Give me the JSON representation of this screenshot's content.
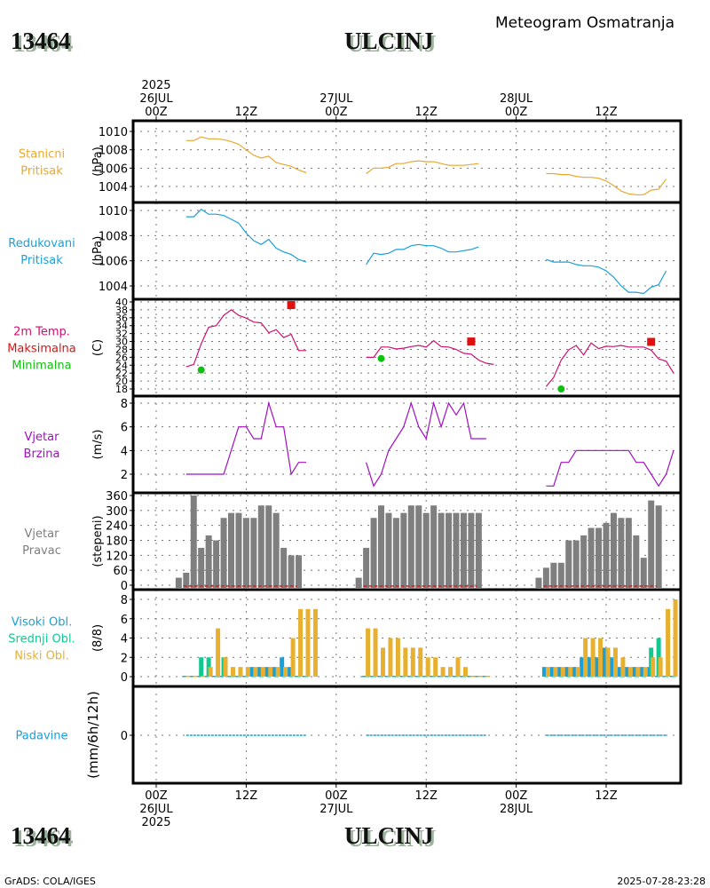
{
  "header": {
    "station_id": "13464",
    "station_name": "ULCINJ",
    "subtitle": "Meteogram Osmatranja"
  },
  "footer": {
    "station_id": "13464",
    "station_name": "ULCINJ",
    "credit": "GrADS: COLA/IGES",
    "timestamp": "2025-07-28-23:28"
  },
  "time_axis": {
    "top_labels": [
      {
        "hour": 0,
        "lines": [
          "2025",
          "26JUL",
          "00Z"
        ]
      },
      {
        "hour": 12,
        "lines": [
          "12Z"
        ]
      },
      {
        "hour": 24,
        "lines": [
          "27JUL",
          "00Z"
        ]
      },
      {
        "hour": 36,
        "lines": [
          "12Z"
        ]
      },
      {
        "hour": 48,
        "lines": [
          "28JUL",
          "00Z"
        ]
      },
      {
        "hour": 60,
        "lines": [
          "12Z"
        ]
      }
    ],
    "bottom_labels": [
      {
        "hour": 0,
        "lines": [
          "00Z",
          "26JUL",
          "2025"
        ]
      },
      {
        "hour": 12,
        "lines": [
          "12Z"
        ]
      },
      {
        "hour": 24,
        "lines": [
          "00Z",
          "27JUL"
        ]
      },
      {
        "hour": 36,
        "lines": [
          "12Z"
        ]
      },
      {
        "hour": 48,
        "lines": [
          "00Z",
          "28JUL"
        ]
      },
      {
        "hour": 60,
        "lines": [
          "12Z"
        ]
      }
    ],
    "range_hours": [
      -3,
      70
    ]
  },
  "chart_data": [
    {
      "type": "line",
      "id": "station-pressure",
      "title_lines": [
        "Stanicni",
        "Pritisak"
      ],
      "ylabel": "(hPa)",
      "color": "#e8a830",
      "ylim": [
        1003,
        1011
      ],
      "yticks": [
        1004,
        1006,
        1008,
        1010
      ],
      "x_hours_start": [
        4,
        28,
        52
      ],
      "segments": [
        [
          1009.0,
          1009.0,
          1009.4,
          1009.2,
          1009.2,
          1009.1,
          1008.9,
          1008.6,
          1008.0,
          1007.4,
          1007.1,
          1007.3,
          1006.6,
          1006.4,
          1006.2,
          1005.8,
          1005.5
        ],
        [
          1005.4,
          1006.0,
          1006.0,
          1006.1,
          1006.5,
          1006.5,
          1006.7,
          1006.8,
          1006.7,
          1006.7,
          1006.5,
          1006.3,
          1006.3,
          1006.3,
          1006.4,
          1006.5
        ],
        [
          1005.4,
          1005.4,
          1005.3,
          1005.3,
          1005.1,
          1005.0,
          1005.0,
          1004.9,
          1004.6,
          1004.1,
          1003.5,
          1003.2,
          1003.1,
          1003.1,
          1003.6,
          1003.7,
          1004.8
        ]
      ]
    },
    {
      "type": "line",
      "id": "reduced-pressure",
      "title_lines": [
        "Redukovani",
        "Pritisak"
      ],
      "ylabel": "(hPa)",
      "color": "#1aa0d8",
      "ylim": [
        1003.2,
        1010.9
      ],
      "yticks": [
        1004,
        1006,
        1008,
        1010
      ],
      "x_hours_start": [
        4,
        28,
        52
      ],
      "segments": [
        [
          1009.5,
          1009.5,
          1010.1,
          1009.7,
          1009.7,
          1009.6,
          1009.3,
          1009.0,
          1008.2,
          1007.6,
          1007.3,
          1007.7,
          1007.0,
          1006.7,
          1006.5,
          1006.1,
          1005.9
        ],
        [
          1005.7,
          1006.6,
          1006.5,
          1006.6,
          1006.9,
          1006.9,
          1007.2,
          1007.3,
          1007.2,
          1007.2,
          1007.0,
          1006.7,
          1006.7,
          1006.8,
          1006.9,
          1007.1
        ],
        [
          1006.1,
          1005.9,
          1005.9,
          1005.9,
          1005.7,
          1005.6,
          1005.6,
          1005.5,
          1005.2,
          1004.7,
          1004.0,
          1003.5,
          1003.5,
          1003.4,
          1003.9,
          1004.1,
          1005.2
        ]
      ]
    },
    {
      "type": "line",
      "id": "temperature",
      "title_lines": [
        "2m Temp.",
        "Maksimalna",
        "Minimalna"
      ],
      "title_colors": [
        "#cc1070",
        "#e01010",
        "#10c010"
      ],
      "ylabel": "(C)",
      "color": "#cc1070",
      "ylim": [
        16.5,
        40.7
      ],
      "yticks": [
        18,
        20,
        22,
        24,
        26,
        28,
        30,
        32,
        34,
        36,
        38,
        40
      ],
      "x_hours_start": [
        4,
        28,
        52
      ],
      "segments": [
        [
          23.6,
          24.2,
          29.4,
          33.6,
          34.0,
          36.6,
          38.0,
          36.6,
          35.9,
          34.9,
          34.7,
          32.2,
          33.0,
          31.0,
          31.8,
          27.7,
          27.7
        ],
        [
          26.0,
          26.0,
          28.6,
          28.6,
          28.1,
          28.3,
          28.7,
          29.0,
          28.6,
          30.2,
          28.7,
          28.6,
          28.0,
          27.0,
          26.8,
          25.3,
          24.5,
          24.2
        ],
        [
          18.6,
          20.9,
          25.3,
          27.9,
          29.0,
          26.6,
          29.6,
          28.2,
          28.8,
          28.7,
          29.0,
          28.6,
          28.6,
          28.6,
          27.8,
          25.6,
          25.0,
          22.0
        ]
      ],
      "max_points": [
        {
          "hour": 18,
          "value": 39.2
        },
        {
          "hour": 42,
          "value": 30.0
        },
        {
          "hour": 66,
          "value": 29.9
        }
      ],
      "min_points": [
        {
          "hour": 6,
          "value": 22.8
        },
        {
          "hour": 30,
          "value": 25.7
        },
        {
          "hour": 54,
          "value": 18.0
        }
      ]
    },
    {
      "type": "line",
      "id": "wind-speed",
      "title_lines": [
        "Vjetar",
        "Brzina"
      ],
      "ylabel": "(m/s)",
      "color": "#a010c0",
      "ylim": [
        0.2,
        8.4
      ],
      "yticks": [
        2,
        4,
        6,
        8
      ],
      "x_hours_start": [
        4,
        28,
        52
      ],
      "segments": [
        [
          2,
          2,
          2,
          2,
          2,
          2,
          4,
          6,
          6,
          5,
          5,
          8,
          6,
          6,
          2,
          3,
          3
        ],
        [
          3,
          1,
          2,
          4,
          5,
          6,
          8,
          6,
          5,
          8,
          6,
          8,
          7,
          8,
          5,
          5,
          5
        ],
        [
          1,
          1,
          3,
          3,
          4,
          4,
          4,
          4,
          4,
          4,
          4,
          4,
          3,
          3,
          2,
          1,
          2,
          4
        ]
      ]
    },
    {
      "type": "bar",
      "id": "wind-direction",
      "title_lines": [
        "Vjetar",
        "Pravac"
      ],
      "ylabel": "(stepeni)",
      "color": "#7f7f7f",
      "ylim": [
        -5,
        365
      ],
      "yticks": [
        0,
        60,
        120,
        180,
        240,
        300,
        360
      ],
      "x_hours_start": [
        3,
        27,
        51
      ],
      "segments": [
        [
          30,
          50,
          360,
          150,
          200,
          180,
          270,
          290,
          290,
          270,
          270,
          320,
          320,
          290,
          150,
          120,
          120
        ],
        [
          30,
          150,
          270,
          320,
          290,
          270,
          290,
          320,
          320,
          290,
          320,
          290,
          290,
          290,
          290,
          290,
          290
        ],
        [
          30,
          70,
          90,
          90,
          180,
          180,
          200,
          230,
          230,
          250,
          290,
          270,
          270,
          200,
          110,
          340,
          320
        ]
      ],
      "calm_line_color": "#d02020"
    },
    {
      "type": "bar",
      "id": "cloud-cover",
      "title_lines": [
        "Visoki Obl.",
        "Srednji Obl.",
        "Niski Obl."
      ],
      "title_colors": [
        "#1aa0d8",
        "#10c890",
        "#e8b030"
      ],
      "ylabel": "(8/8)",
      "ylim": [
        -0.6,
        8.5
      ],
      "yticks": [
        0,
        2,
        4,
        6,
        8
      ],
      "x_hours_start": [
        4,
        28,
        52
      ],
      "series": [
        {
          "name": "Visoki Obl.",
          "color": "#1aa0d8",
          "segments": [
            [
              0,
              0,
              0,
              0,
              0,
              0,
              0,
              0,
              0,
              1,
              1,
              1,
              1,
              2,
              1,
              0,
              0
            ],
            [
              0,
              0,
              0,
              0,
              0,
              0,
              0,
              0,
              0,
              0,
              0,
              0,
              0,
              0,
              0,
              0,
              0
            ],
            [
              1,
              1,
              1,
              1,
              1,
              2,
              2,
              2,
              3,
              2,
              1,
              1,
              1,
              1,
              1,
              0,
              0,
              0
            ]
          ]
        },
        {
          "name": "Srednji Obl.",
          "color": "#10c890",
          "segments": [
            [
              0,
              0,
              2,
              2,
              0,
              2,
              0,
              0,
              0,
              0,
              0,
              0,
              0,
              0,
              0,
              0,
              0
            ],
            [
              0,
              0,
              0,
              0,
              0,
              0,
              0,
              0,
              0,
              0,
              0,
              0,
              0,
              0,
              0,
              0,
              0
            ],
            [
              0,
              0,
              0,
              0,
              0,
              0,
              0,
              0,
              0,
              0,
              0,
              0,
              0,
              0,
              3,
              4,
              0,
              0
            ]
          ]
        },
        {
          "name": "Niski Obl.",
          "color": "#e8b030",
          "segments": [
            [
              0,
              0,
              0,
              1,
              5,
              2,
              1,
              1,
              1,
              1,
              1,
              1,
              1,
              1,
              4,
              7,
              7,
              7
            ],
            [
              5,
              5,
              3,
              4,
              4,
              3,
              3,
              3,
              2,
              2,
              1,
              1,
              2,
              1,
              0,
              0,
              0
            ],
            [
              1,
              1,
              1,
              1,
              1,
              4,
              4,
              4,
              3,
              3,
              2,
              1,
              1,
              1,
              2,
              2,
              7,
              8
            ]
          ]
        }
      ]
    },
    {
      "type": "line",
      "id": "precipitation",
      "title_lines": [
        "Padavine"
      ],
      "ylabel": "(mm/6h/12h)",
      "color": "#1aa0d8",
      "ylim": [
        -1,
        1
      ],
      "yticks": [
        0
      ],
      "x_hours_start": [
        4,
        28,
        52
      ],
      "segments": [
        [
          0,
          0,
          0,
          0,
          0,
          0,
          0,
          0,
          0,
          0,
          0,
          0,
          0,
          0,
          0,
          0,
          0
        ],
        [
          0,
          0,
          0,
          0,
          0,
          0,
          0,
          0,
          0,
          0,
          0,
          0,
          0,
          0,
          0,
          0,
          0
        ],
        [
          0,
          0,
          0,
          0,
          0,
          0,
          0,
          0,
          0,
          0,
          0,
          0,
          0,
          0,
          0,
          0,
          0
        ]
      ]
    }
  ]
}
